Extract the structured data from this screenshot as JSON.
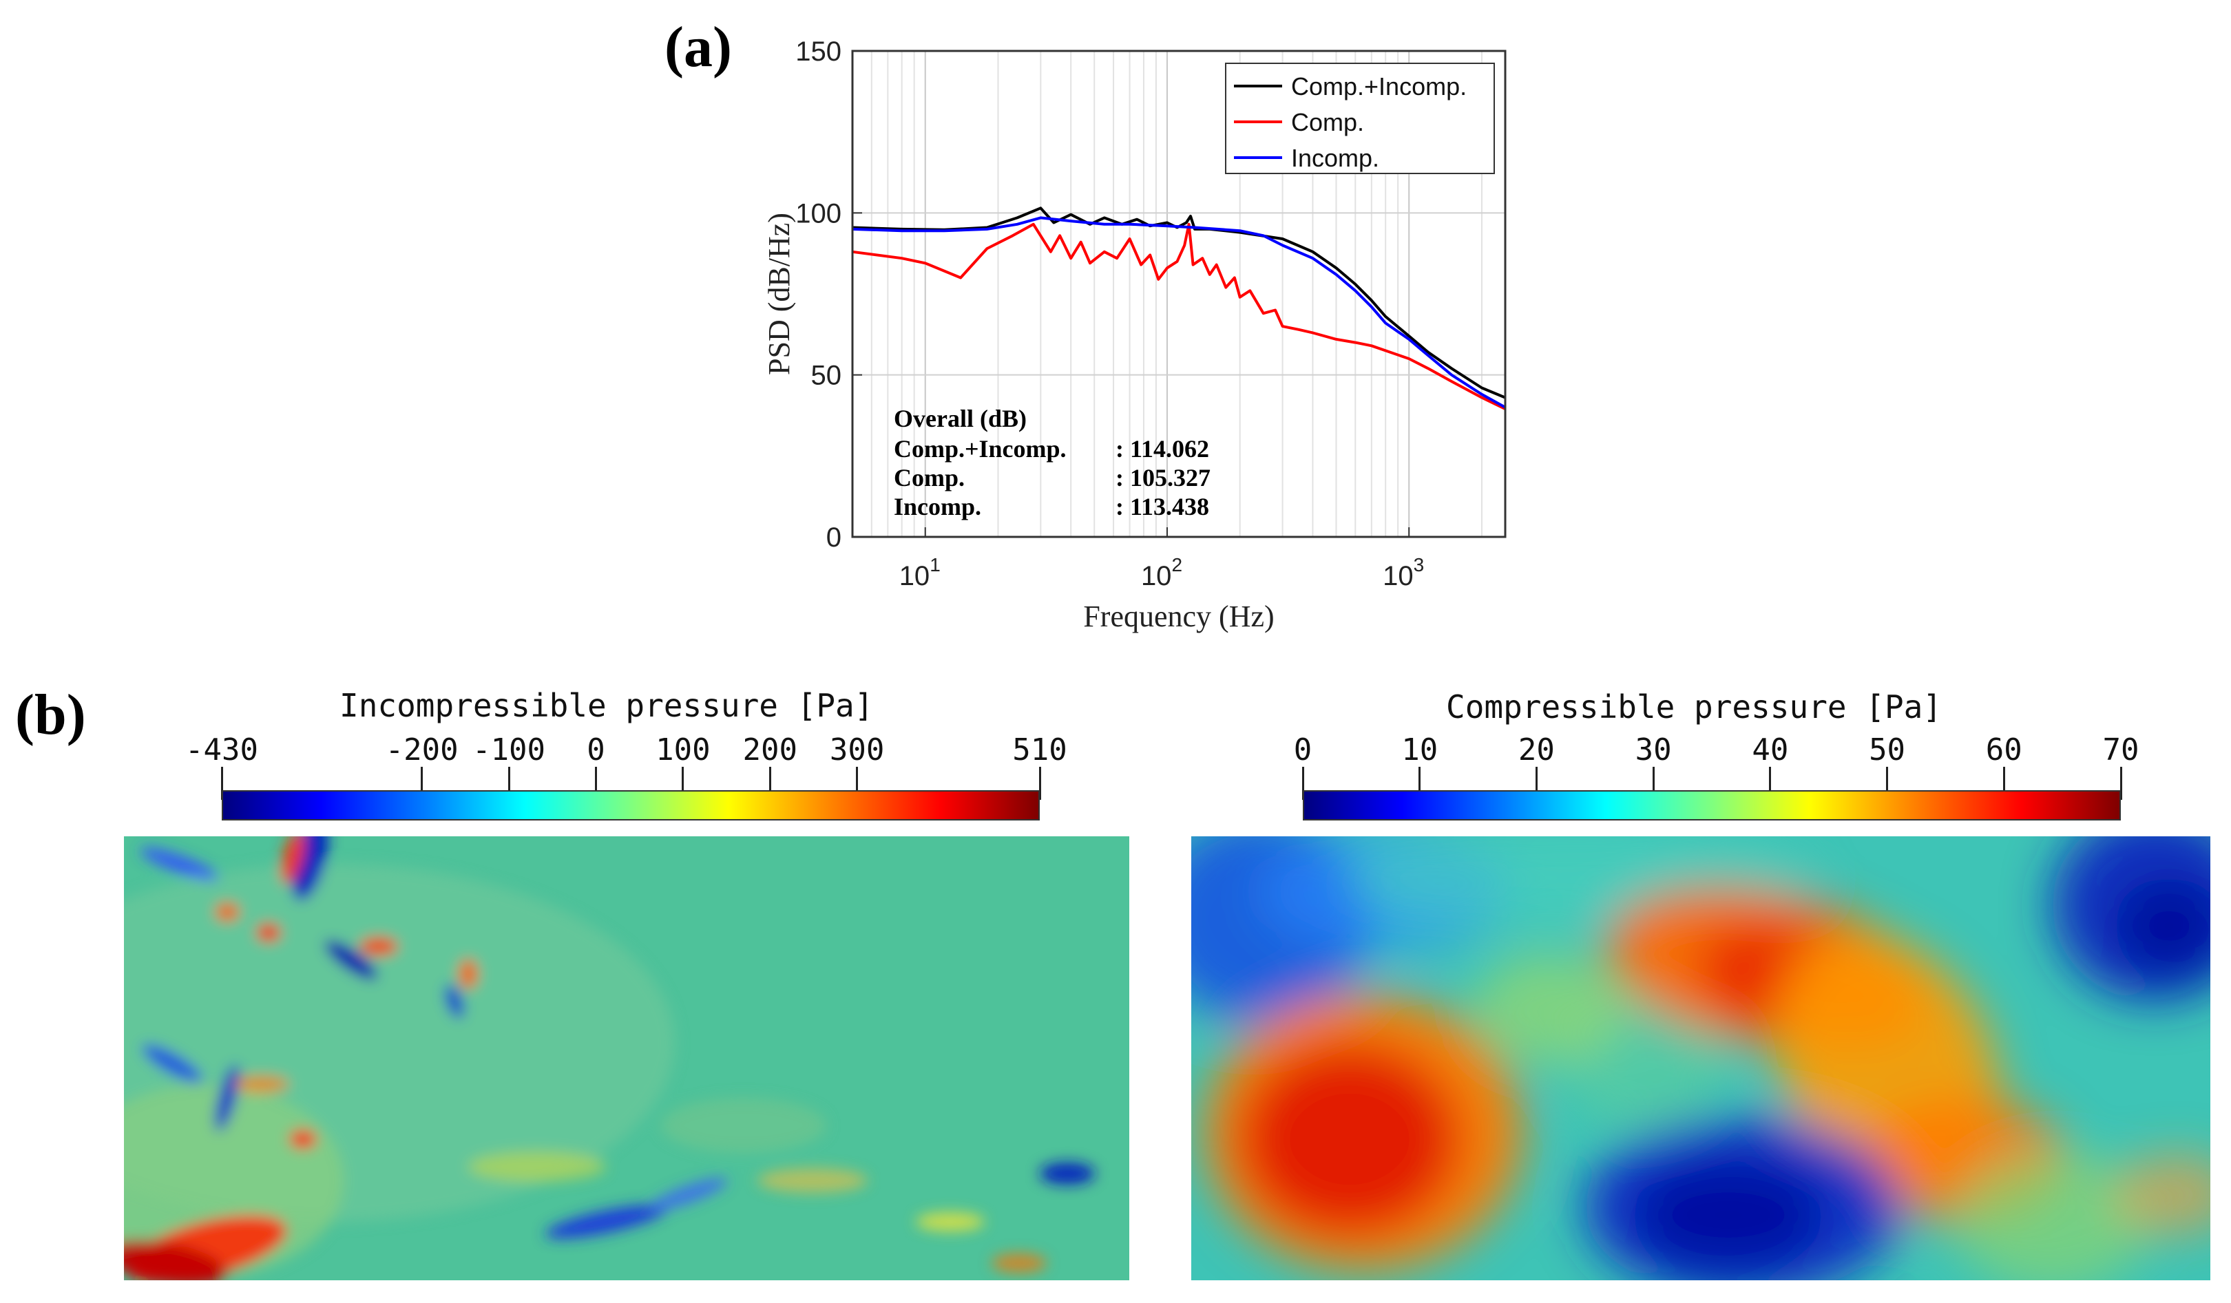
{
  "panel_a_label": "(a)",
  "panel_b_label": "(b)",
  "chart_data": {
    "type": "line",
    "xscale": "log",
    "xlabel": "Frequency (Hz)",
    "ylabel": "PSD (dB/Hz)",
    "xlim": [
      5,
      2500
    ],
    "ylim": [
      0,
      150
    ],
    "yticks": [
      0,
      50,
      100,
      150
    ],
    "xtick_bases": [
      "10",
      "10",
      "10"
    ],
    "xtick_exps": [
      "1",
      "2",
      "3"
    ],
    "xtick_values": [
      10,
      100,
      1000
    ],
    "grid": true,
    "legend_position": "top-right",
    "series": [
      {
        "name": "Comp.+Incomp.",
        "color": "#000000",
        "points": [
          [
            5,
            95.5
          ],
          [
            8,
            95
          ],
          [
            12,
            94.8
          ],
          [
            18,
            95.5
          ],
          [
            24,
            98.5
          ],
          [
            30,
            101.5
          ],
          [
            34,
            97
          ],
          [
            40,
            99.5
          ],
          [
            48,
            96.5
          ],
          [
            55,
            98.5
          ],
          [
            65,
            96.5
          ],
          [
            75,
            98
          ],
          [
            85,
            96
          ],
          [
            100,
            97
          ],
          [
            110,
            95.5
          ],
          [
            120,
            97
          ],
          [
            125,
            99
          ],
          [
            130,
            95
          ],
          [
            150,
            95
          ],
          [
            200,
            94
          ],
          [
            300,
            92
          ],
          [
            400,
            88
          ],
          [
            500,
            83
          ],
          [
            600,
            78
          ],
          [
            700,
            73
          ],
          [
            800,
            68
          ],
          [
            1000,
            62
          ],
          [
            1200,
            57
          ],
          [
            1500,
            52
          ],
          [
            2000,
            46
          ],
          [
            2500,
            43
          ]
        ]
      },
      {
        "name": "Comp.",
        "color": "#ff0000",
        "points": [
          [
            5,
            88
          ],
          [
            8,
            86
          ],
          [
            10,
            84.5
          ],
          [
            14,
            80
          ],
          [
            18,
            89
          ],
          [
            23,
            93
          ],
          [
            28,
            96.5
          ],
          [
            33,
            88
          ],
          [
            36,
            93
          ],
          [
            40,
            86
          ],
          [
            44,
            91
          ],
          [
            48,
            84.5
          ],
          [
            55,
            88
          ],
          [
            62,
            86
          ],
          [
            70,
            92
          ],
          [
            78,
            84
          ],
          [
            85,
            87
          ],
          [
            92,
            79.5
          ],
          [
            100,
            83
          ],
          [
            110,
            85
          ],
          [
            118,
            90
          ],
          [
            123,
            96.5
          ],
          [
            128,
            84
          ],
          [
            140,
            86
          ],
          [
            150,
            81
          ],
          [
            160,
            84
          ],
          [
            175,
            77
          ],
          [
            190,
            80
          ],
          [
            200,
            74
          ],
          [
            220,
            76
          ],
          [
            250,
            69
          ],
          [
            280,
            70
          ],
          [
            300,
            65
          ],
          [
            350,
            64
          ],
          [
            400,
            63
          ],
          [
            500,
            61
          ],
          [
            600,
            60
          ],
          [
            700,
            59
          ],
          [
            800,
            57.5
          ],
          [
            1000,
            55
          ],
          [
            1200,
            52
          ],
          [
            1500,
            48
          ],
          [
            2000,
            43
          ],
          [
            2500,
            39.5
          ]
        ]
      },
      {
        "name": "Incomp.",
        "color": "#0000ff",
        "points": [
          [
            5,
            95
          ],
          [
            8,
            94.5
          ],
          [
            12,
            94.5
          ],
          [
            18,
            95
          ],
          [
            24,
            96.5
          ],
          [
            30,
            98.5
          ],
          [
            40,
            97.5
          ],
          [
            55,
            96.5
          ],
          [
            70,
            96.5
          ],
          [
            100,
            96
          ],
          [
            130,
            95.5
          ],
          [
            200,
            94.5
          ],
          [
            250,
            93
          ],
          [
            300,
            90
          ],
          [
            400,
            86
          ],
          [
            500,
            81
          ],
          [
            600,
            76
          ],
          [
            700,
            71
          ],
          [
            800,
            66
          ],
          [
            1000,
            61
          ],
          [
            1200,
            56
          ],
          [
            1500,
            50
          ],
          [
            2000,
            44
          ],
          [
            2500,
            40
          ]
        ]
      }
    ],
    "annotation": {
      "title": "Overall (dB)",
      "rows": [
        {
          "label": "Comp.+Incomp.",
          "value": ": 114.062"
        },
        {
          "label": "Comp.",
          "value": ": 105.327"
        },
        {
          "label": "Incomp.",
          "value": ": 113.438"
        }
      ]
    }
  },
  "contours": {
    "left": {
      "title": "Incompressible pressure [Pa]",
      "min": -430,
      "max": 510,
      "ticks": [
        {
          "value": -430,
          "label": "-430"
        },
        {
          "value": -200,
          "label": "-200"
        },
        {
          "value": -100,
          "label": "-100"
        },
        {
          "value": 0,
          "label": "0"
        },
        {
          "value": 100,
          "label": "100"
        },
        {
          "value": 200,
          "label": "200"
        },
        {
          "value": 300,
          "label": "300"
        },
        {
          "value": 510,
          "label": "510"
        }
      ]
    },
    "right": {
      "title": "Compressible pressure [Pa]",
      "min": 0,
      "max": 70,
      "ticks": [
        {
          "value": 0,
          "label": "0"
        },
        {
          "value": 10,
          "label": "10"
        },
        {
          "value": 20,
          "label": "20"
        },
        {
          "value": 30,
          "label": "30"
        },
        {
          "value": 40,
          "label": "40"
        },
        {
          "value": 50,
          "label": "50"
        },
        {
          "value": 60,
          "label": "60"
        },
        {
          "value": 70,
          "label": "70"
        }
      ]
    }
  }
}
